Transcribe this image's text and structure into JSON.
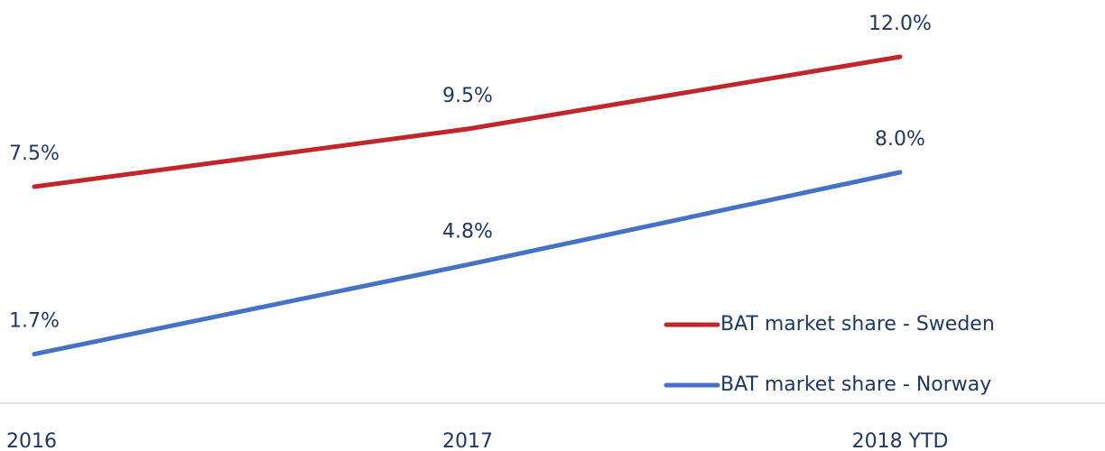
{
  "chart_data": {
    "type": "line",
    "categories": [
      "2016",
      "2017",
      "2018 YTD"
    ],
    "series": [
      {
        "name": "BAT market share - Sweden",
        "color": "#c0272d",
        "values": [
          7.5,
          9.5,
          12.0
        ],
        "value_labels": [
          "7.5%",
          "9.5%",
          "12.0%"
        ]
      },
      {
        "name": "BAT market share - Norway",
        "color": "#4472c4",
        "values": [
          1.7,
          4.8,
          8.0
        ],
        "value_labels": [
          "1.7%",
          "4.8%",
          "8.0%"
        ]
      }
    ]
  }
}
